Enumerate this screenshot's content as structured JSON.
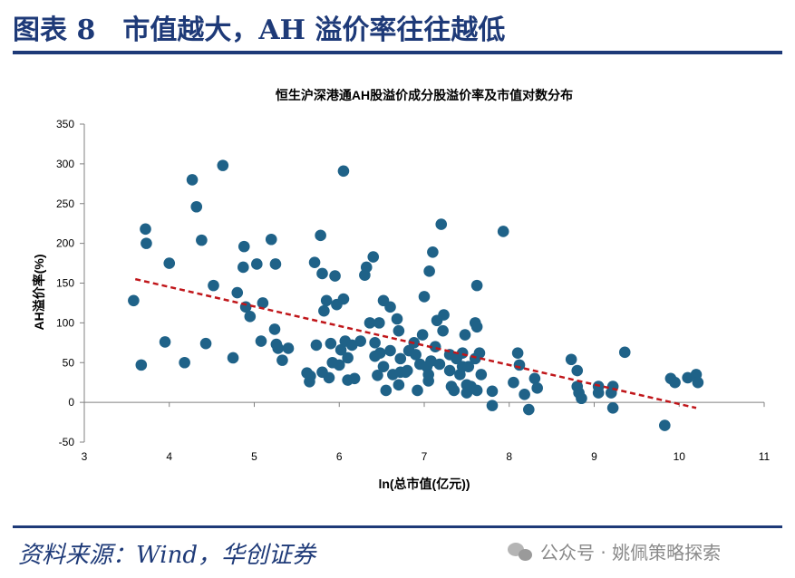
{
  "header": {
    "title": "图表 8　市值越大，AH 溢价率往往越低"
  },
  "footer": {
    "source": "资料来源：Wind，华创证券",
    "watermark": "公众号 · 姚佩策略探索"
  },
  "chart_data": {
    "type": "scatter",
    "title": "恒生沪深港通AH股溢价成分股溢价率及市值对数分布",
    "xlabel": "ln(总市值(亿元))",
    "ylabel": "AH溢价率(%)",
    "xlim": [
      3,
      11
    ],
    "ylim": [
      -50,
      350
    ],
    "xticks": [
      3,
      4,
      5,
      6,
      7,
      8,
      9,
      10,
      11
    ],
    "yticks": [
      -50,
      0,
      50,
      100,
      150,
      200,
      250,
      300,
      350
    ],
    "grid": false,
    "legend": "none",
    "colors": {
      "points": "#1f6288",
      "trend": "#c0161a",
      "axis": "#808080"
    },
    "trendline": {
      "x": [
        3.6,
        10.2
      ],
      "y": [
        155,
        -7
      ]
    },
    "points": [
      [
        3.58,
        128
      ],
      [
        3.67,
        47
      ],
      [
        3.72,
        218
      ],
      [
        3.73,
        200
      ],
      [
        4.0,
        175
      ],
      [
        3.95,
        76
      ],
      [
        4.18,
        50
      ],
      [
        4.27,
        280
      ],
      [
        4.32,
        246
      ],
      [
        4.38,
        204
      ],
      [
        4.43,
        74
      ],
      [
        4.52,
        147
      ],
      [
        4.63,
        298
      ],
      [
        4.75,
        56
      ],
      [
        4.8,
        138
      ],
      [
        4.88,
        196
      ],
      [
        4.87,
        170
      ],
      [
        4.9,
        120
      ],
      [
        4.95,
        108
      ],
      [
        5.03,
        174
      ],
      [
        5.08,
        77
      ],
      [
        5.1,
        125
      ],
      [
        5.2,
        205
      ],
      [
        5.24,
        92
      ],
      [
        5.25,
        174
      ],
      [
        5.26,
        73
      ],
      [
        5.28,
        68
      ],
      [
        5.33,
        53
      ],
      [
        5.4,
        68
      ],
      [
        5.62,
        37
      ],
      [
        5.65,
        26
      ],
      [
        5.66,
        33
      ],
      [
        5.71,
        176
      ],
      [
        5.73,
        72
      ],
      [
        5.78,
        210
      ],
      [
        5.8,
        162
      ],
      [
        5.8,
        38
      ],
      [
        5.85,
        128
      ],
      [
        5.82,
        115
      ],
      [
        5.88,
        31
      ],
      [
        5.9,
        74
      ],
      [
        5.92,
        50
      ],
      [
        5.95,
        159
      ],
      [
        5.97,
        123
      ],
      [
        6.0,
        47
      ],
      [
        6.02,
        66
      ],
      [
        6.05,
        291
      ],
      [
        6.05,
        130
      ],
      [
        6.07,
        77
      ],
      [
        6.1,
        28
      ],
      [
        6.1,
        56
      ],
      [
        6.15,
        72
      ],
      [
        6.18,
        30
      ],
      [
        6.25,
        77
      ],
      [
        6.3,
        160
      ],
      [
        6.32,
        170
      ],
      [
        6.36,
        100
      ],
      [
        6.4,
        183
      ],
      [
        6.42,
        75
      ],
      [
        6.42,
        58
      ],
      [
        6.45,
        34
      ],
      [
        6.47,
        100
      ],
      [
        6.48,
        62
      ],
      [
        6.52,
        128
      ],
      [
        6.52,
        45
      ],
      [
        6.55,
        15
      ],
      [
        6.6,
        120
      ],
      [
        6.6,
        65
      ],
      [
        6.63,
        35
      ],
      [
        6.68,
        105
      ],
      [
        6.7,
        90
      ],
      [
        6.7,
        22
      ],
      [
        6.72,
        55
      ],
      [
        6.72,
        38
      ],
      [
        6.78,
        38
      ],
      [
        6.8,
        40
      ],
      [
        6.82,
        65
      ],
      [
        6.88,
        75
      ],
      [
        6.9,
        60
      ],
      [
        6.92,
        15
      ],
      [
        6.95,
        48
      ],
      [
        6.98,
        85
      ],
      [
        7.0,
        133
      ],
      [
        7.03,
        45
      ],
      [
        7.05,
        27
      ],
      [
        7.05,
        35
      ],
      [
        7.06,
        165
      ],
      [
        7.08,
        52
      ],
      [
        7.1,
        189
      ],
      [
        7.13,
        70
      ],
      [
        7.15,
        103
      ],
      [
        7.18,
        48
      ],
      [
        7.2,
        224
      ],
      [
        7.22,
        90
      ],
      [
        7.23,
        110
      ],
      [
        7.3,
        60
      ],
      [
        7.3,
        40
      ],
      [
        7.32,
        20
      ],
      [
        7.35,
        15
      ],
      [
        7.38,
        55
      ],
      [
        7.42,
        35
      ],
      [
        7.45,
        45
      ],
      [
        7.45,
        62
      ],
      [
        7.48,
        85
      ],
      [
        7.5,
        22
      ],
      [
        7.5,
        12
      ],
      [
        7.52,
        45
      ],
      [
        7.55,
        20
      ],
      [
        7.6,
        100
      ],
      [
        7.6,
        55
      ],
      [
        7.62,
        15
      ],
      [
        7.62,
        95
      ],
      [
        7.62,
        147
      ],
      [
        7.65,
        62
      ],
      [
        7.67,
        35
      ],
      [
        7.8,
        -4
      ],
      [
        7.8,
        14
      ],
      [
        7.93,
        215
      ],
      [
        8.05,
        25
      ],
      [
        8.1,
        62
      ],
      [
        8.12,
        47
      ],
      [
        8.18,
        10
      ],
      [
        8.23,
        -9
      ],
      [
        8.3,
        30
      ],
      [
        8.33,
        18
      ],
      [
        8.73,
        54
      ],
      [
        8.8,
        40
      ],
      [
        8.8,
        20
      ],
      [
        8.82,
        12
      ],
      [
        8.85,
        5
      ],
      [
        9.05,
        20
      ],
      [
        9.05,
        12
      ],
      [
        9.2,
        12
      ],
      [
        9.22,
        20
      ],
      [
        9.22,
        -7
      ],
      [
        9.36,
        63
      ],
      [
        9.83,
        -29
      ],
      [
        9.9,
        30
      ],
      [
        9.95,
        25
      ],
      [
        10.1,
        31
      ],
      [
        10.2,
        35
      ],
      [
        10.22,
        25
      ]
    ]
  }
}
